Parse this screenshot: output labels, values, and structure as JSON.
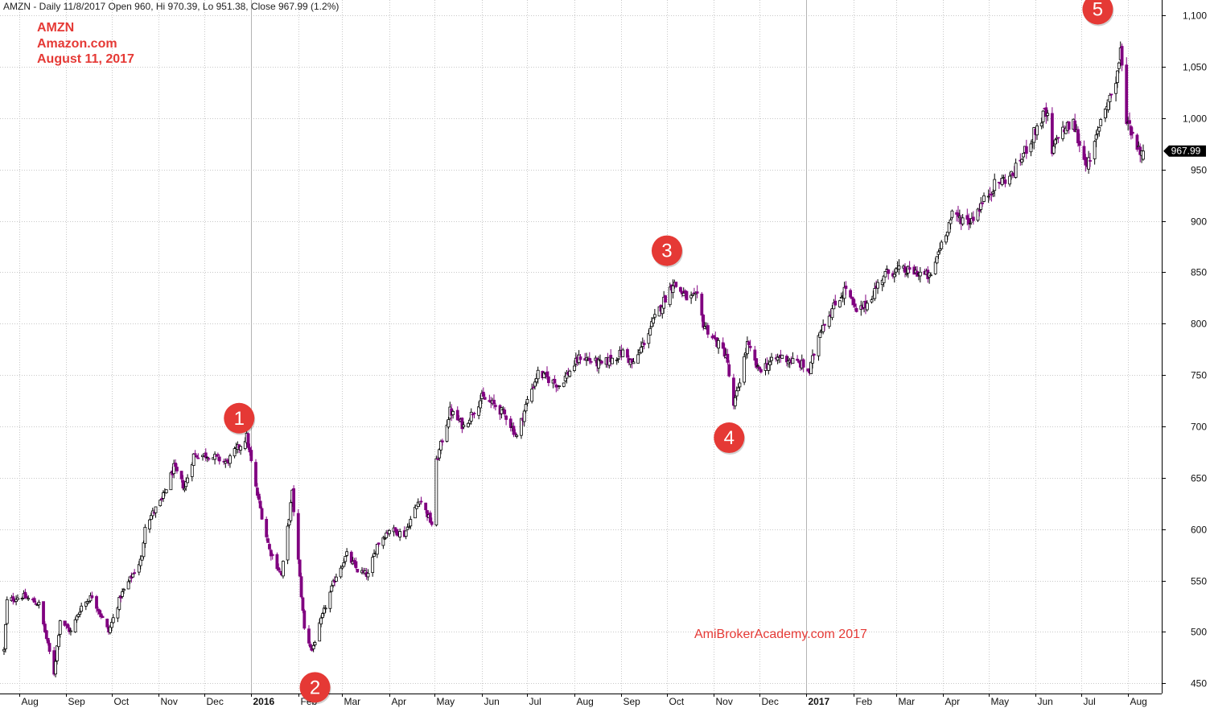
{
  "header": "AMZN - Daily 11/8/2017 Open 960, Hi 970.39, Lo 951.38, Close 967.99 (1.2%)",
  "title_lines": [
    "AMZN",
    "Amazon.com",
    "August 11, 2017"
  ],
  "watermark": "AmiBrokerAcademy.com  2017",
  "colors": {
    "title": "#e53935",
    "candle": "#000000",
    "candle_highlight": "#800080",
    "marker": "#e53935",
    "grid": "#c8c8c8"
  },
  "chart_data": {
    "type": "candlestick",
    "ylim": [
      440,
      1115
    ],
    "y_ticks": [
      450,
      500,
      550,
      600,
      650,
      700,
      750,
      800,
      850,
      900,
      950,
      1000,
      1050,
      1100
    ],
    "y_tick_labels": [
      "450",
      "500",
      "550",
      "600",
      "650",
      "700",
      "750",
      "800",
      "850",
      "900",
      "950",
      "1,000",
      "1,050",
      "1,100"
    ],
    "x_labels": [
      {
        "label": "Aug",
        "date": "2015-08"
      },
      {
        "label": "Sep",
        "date": "2015-09"
      },
      {
        "label": "Oct",
        "date": "2015-10"
      },
      {
        "label": "Nov",
        "date": "2015-11"
      },
      {
        "label": "Dec",
        "date": "2015-12"
      },
      {
        "label": "2016",
        "date": "2016-01",
        "year": true
      },
      {
        "label": "Feb",
        "date": "2016-02"
      },
      {
        "label": "Mar",
        "date": "2016-03"
      },
      {
        "label": "Apr",
        "date": "2016-04"
      },
      {
        "label": "May",
        "date": "2016-05"
      },
      {
        "label": "Jun",
        "date": "2016-06"
      },
      {
        "label": "Jul",
        "date": "2016-07"
      },
      {
        "label": "Aug",
        "date": "2016-08"
      },
      {
        "label": "Sep",
        "date": "2016-09"
      },
      {
        "label": "Oct",
        "date": "2016-10"
      },
      {
        "label": "Nov",
        "date": "2016-11"
      },
      {
        "label": "Dec",
        "date": "2016-12"
      },
      {
        "label": "2017",
        "date": "2017-01",
        "year": true
      },
      {
        "label": "Feb",
        "date": "2017-02"
      },
      {
        "label": "Mar",
        "date": "2017-03"
      },
      {
        "label": "Apr",
        "date": "2017-04"
      },
      {
        "label": "May",
        "date": "2017-05"
      },
      {
        "label": "Jun",
        "date": "2017-06"
      },
      {
        "label": "Jul",
        "date": "2017-07"
      },
      {
        "label": "Aug",
        "date": "2017-08"
      }
    ],
    "last_close": 967.99,
    "last_close_label": "967.99",
    "close_path": [
      [
        "2015-07-22",
        482
      ],
      [
        "2015-07-24",
        530
      ],
      [
        "2015-08-03",
        535
      ],
      [
        "2015-08-14",
        527
      ],
      [
        "2015-08-24",
        460
      ],
      [
        "2015-08-28",
        512
      ],
      [
        "2015-09-04",
        500
      ],
      [
        "2015-09-11",
        525
      ],
      [
        "2015-09-18",
        535
      ],
      [
        "2015-09-29",
        500
      ],
      [
        "2015-10-07",
        535
      ],
      [
        "2015-10-21",
        572
      ],
      [
        "2015-10-23",
        605
      ],
      [
        "2015-11-03",
        628
      ],
      [
        "2015-11-11",
        660
      ],
      [
        "2015-11-18",
        640
      ],
      [
        "2015-11-24",
        672
      ],
      [
        "2015-12-04",
        672
      ],
      [
        "2015-12-16",
        665
      ],
      [
        "2015-12-29",
        690
      ],
      [
        "2016-01-04",
        640
      ],
      [
        "2016-01-13",
        580
      ],
      [
        "2016-01-21",
        555
      ],
      [
        "2016-01-28",
        635
      ],
      [
        "2016-02-05",
        503
      ],
      [
        "2016-02-10",
        482
      ],
      [
        "2016-02-19",
        525
      ],
      [
        "2016-02-26",
        555
      ],
      [
        "2016-03-04",
        575
      ],
      [
        "2016-03-11",
        560
      ],
      [
        "2016-03-18",
        555
      ],
      [
        "2016-03-24",
        585
      ],
      [
        "2016-04-01",
        600
      ],
      [
        "2016-04-11",
        595
      ],
      [
        "2016-04-21",
        630
      ],
      [
        "2016-04-29",
        605
      ],
      [
        "2016-05-02",
        665
      ],
      [
        "2016-05-11",
        715
      ],
      [
        "2016-05-20",
        700
      ],
      [
        "2016-06-01",
        728
      ],
      [
        "2016-06-10",
        720
      ],
      [
        "2016-06-17",
        710
      ],
      [
        "2016-06-24",
        690
      ],
      [
        "2016-07-01",
        725
      ],
      [
        "2016-07-08",
        752
      ],
      [
        "2016-07-22",
        740
      ],
      [
        "2016-08-05",
        768
      ],
      [
        "2016-08-19",
        760
      ],
      [
        "2016-09-02",
        772
      ],
      [
        "2016-09-09",
        760
      ],
      [
        "2016-09-23",
        805
      ],
      [
        "2016-10-05",
        840
      ],
      [
        "2016-10-14",
        825
      ],
      [
        "2016-10-21",
        825
      ],
      [
        "2016-10-25",
        800
      ],
      [
        "2016-11-01",
        785
      ],
      [
        "2016-11-09",
        770
      ],
      [
        "2016-11-14",
        718
      ],
      [
        "2016-11-23",
        780
      ],
      [
        "2016-11-30",
        755
      ],
      [
        "2016-12-06",
        760
      ],
      [
        "2016-12-15",
        768
      ],
      [
        "2016-12-29",
        760
      ],
      [
        "2017-01-03",
        753
      ],
      [
        "2017-01-10",
        795
      ],
      [
        "2017-01-27",
        835
      ],
      [
        "2017-02-03",
        810
      ],
      [
        "2017-02-10",
        820
      ],
      [
        "2017-02-21",
        848
      ],
      [
        "2017-03-01",
        852
      ],
      [
        "2017-03-15",
        850
      ],
      [
        "2017-03-24",
        845
      ],
      [
        "2017-03-30",
        875
      ],
      [
        "2017-04-07",
        905
      ],
      [
        "2017-04-19",
        900
      ],
      [
        "2017-04-28",
        920
      ],
      [
        "2017-05-05",
        935
      ],
      [
        "2017-05-17",
        945
      ],
      [
        "2017-05-31",
        985
      ],
      [
        "2017-06-07",
        1005
      ],
      [
        "2017-06-09",
        1000
      ],
      [
        "2017-06-12",
        965
      ],
      [
        "2017-06-16",
        985
      ],
      [
        "2017-06-26",
        995
      ],
      [
        "2017-07-03",
        960
      ],
      [
        "2017-07-07",
        955
      ],
      [
        "2017-07-14",
        1000
      ],
      [
        "2017-07-24",
        1035
      ],
      [
        "2017-07-27",
        1065
      ],
      [
        "2017-07-31",
        1000
      ],
      [
        "2017-08-04",
        985
      ],
      [
        "2017-08-08",
        970
      ],
      [
        "2017-08-11",
        967.99
      ]
    ],
    "annotations": [
      {
        "label": "1",
        "date": "2015-12-24",
        "price": 708
      },
      {
        "label": "2",
        "date": "2016-02-12",
        "price": 446
      },
      {
        "label": "3",
        "date": "2016-10-01",
        "price": 871
      },
      {
        "label": "4",
        "date": "2016-11-11",
        "price": 689
      },
      {
        "label": "5",
        "date": "2017-07-12",
        "price": 1106
      }
    ]
  }
}
